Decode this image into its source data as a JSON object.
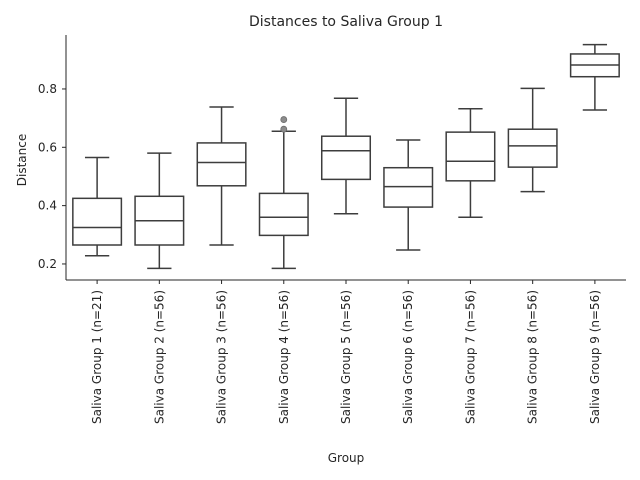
{
  "chart_data": {
    "type": "boxplot",
    "title": "Distances to Saliva Group 1",
    "xlabel": "Group",
    "ylabel": "Distance",
    "ylim": [
      0.145,
      0.985
    ],
    "yticks": [
      0.2,
      0.4,
      0.6,
      0.8
    ],
    "ytick_labels": [
      "0.2",
      "0.4",
      "0.6",
      "0.8"
    ],
    "grid": false,
    "categories": [
      "Saliva Group 1 (n=21)",
      "Saliva Group 2 (n=56)",
      "Saliva Group 3 (n=56)",
      "Saliva Group 4 (n=56)",
      "Saliva Group 5 (n=56)",
      "Saliva Group 6 (n=56)",
      "Saliva Group 7 (n=56)",
      "Saliva Group 8 (n=56)",
      "Saliva Group 9 (n=56)"
    ],
    "boxes": [
      {
        "whislo": 0.228,
        "q1": 0.265,
        "med": 0.325,
        "q3": 0.425,
        "whishi": 0.565,
        "fliers": []
      },
      {
        "whislo": 0.185,
        "q1": 0.265,
        "med": 0.348,
        "q3": 0.432,
        "whishi": 0.58,
        "fliers": []
      },
      {
        "whislo": 0.265,
        "q1": 0.468,
        "med": 0.548,
        "q3": 0.615,
        "whishi": 0.738,
        "fliers": []
      },
      {
        "whislo": 0.185,
        "q1": 0.298,
        "med": 0.36,
        "q3": 0.442,
        "whishi": 0.655,
        "fliers": [
          0.662,
          0.695
        ]
      },
      {
        "whislo": 0.372,
        "q1": 0.49,
        "med": 0.588,
        "q3": 0.638,
        "whishi": 0.768,
        "fliers": []
      },
      {
        "whislo": 0.248,
        "q1": 0.395,
        "med": 0.465,
        "q3": 0.53,
        "whishi": 0.625,
        "fliers": []
      },
      {
        "whislo": 0.36,
        "q1": 0.485,
        "med": 0.552,
        "q3": 0.652,
        "whishi": 0.732,
        "fliers": []
      },
      {
        "whislo": 0.448,
        "q1": 0.532,
        "med": 0.605,
        "q3": 0.662,
        "whishi": 0.802,
        "fliers": []
      },
      {
        "whislo": 0.728,
        "q1": 0.842,
        "med": 0.882,
        "q3": 0.92,
        "whishi": 0.952,
        "fliers": []
      }
    ]
  }
}
